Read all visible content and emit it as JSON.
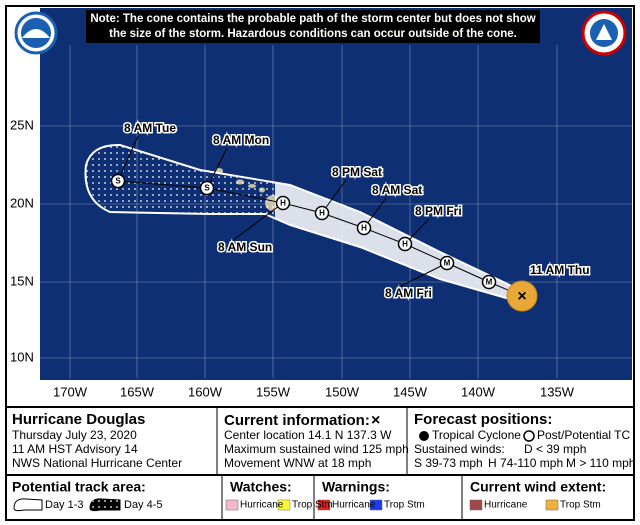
{
  "header": {
    "note": [
      "Note: The cone contains the probable path of the storm center but does not show",
      "the size of the storm. Hazardous conditions can occur outside of the cone."
    ]
  },
  "map": {
    "lat_labels": [
      "25N",
      "20N",
      "15N",
      "10N"
    ],
    "lon_labels": [
      "170W",
      "165W",
      "160W",
      "155W",
      "150W",
      "145W",
      "140W",
      "135W"
    ],
    "current_marker": "×",
    "current_label": "11 AM Thu",
    "forecast_points": [
      {
        "symbol": "M"
      },
      {
        "symbol": "M",
        "label": "8 AM Fri"
      },
      {
        "symbol": "H",
        "label": "8 PM Fri"
      },
      {
        "symbol": "H",
        "label": "8 AM Sat"
      },
      {
        "symbol": "H",
        "label": "8 PM Sat"
      },
      {
        "symbol": "H",
        "label": "8 AM Sun"
      },
      {
        "symbol": "S",
        "label": "8 AM Mon"
      },
      {
        "symbol": "S",
        "label": "8 AM Tue"
      }
    ]
  },
  "info": {
    "storm": {
      "name": "Hurricane Douglas",
      "lines": [
        "Thursday July 23, 2020",
        "11 AM HST Advisory 14",
        "NWS National Hurricane Center"
      ]
    },
    "current": {
      "title": "Current information:",
      "marker": "×",
      "lines": [
        "Center location 14.1 N 137.3 W",
        "Maximum sustained wind 125 mph",
        "Movement WNW at 18 mph"
      ]
    },
    "forecast": {
      "title": "Forecast positions:",
      "tropical": "Tropical Cyclone",
      "post": "Post/Potential TC",
      "winds_title": "Sustained winds:",
      "winds": [
        "D < 39 mph",
        "S 39-73 mph",
        "H 74-110 mph",
        "M > 110 mph"
      ]
    }
  },
  "legend": {
    "track": {
      "title": "Potential track area:",
      "items": [
        "Day 1-3",
        "Day 4-5"
      ]
    },
    "watches": {
      "title": "Watches:",
      "items": [
        "Hurricane",
        "Trop Stm"
      ]
    },
    "warnings": {
      "title": "Warnings:",
      "items": [
        "Hurricane",
        "Trop Stm"
      ]
    },
    "wind": {
      "title": "Current wind extent:",
      "items": [
        "Hurricane",
        "Trop Stm"
      ]
    }
  }
}
